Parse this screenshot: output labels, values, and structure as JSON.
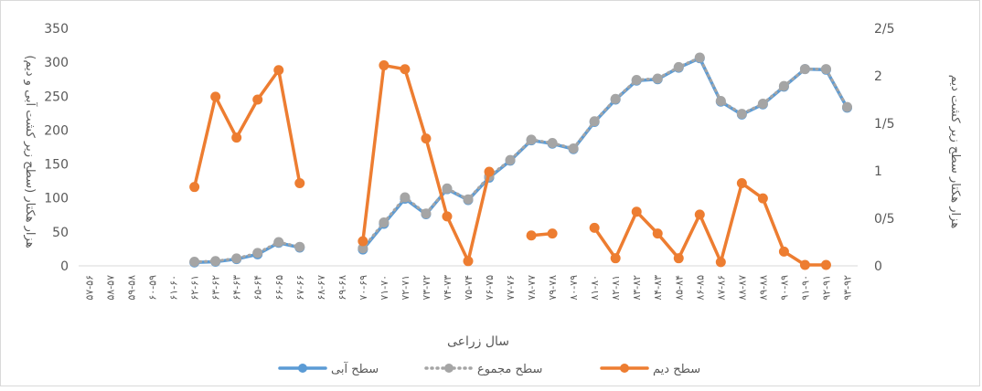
{
  "chart_data": {
    "type": "line",
    "xlabel": "سال زراعی",
    "ylabel_left": "هزار هکتار (سطح زیر کشت آبی و دیم)",
    "ylabel_right": "هزار هکتار سطح زیر کشت دیم",
    "y_left_lim": [
      0,
      350
    ],
    "y_left_ticks": [
      "0",
      "50",
      "100",
      "150",
      "200",
      "250",
      "300",
      "350"
    ],
    "y_right_lim": [
      0,
      2.5
    ],
    "y_right_ticks": [
      "0",
      "0/5",
      "1",
      "1/5",
      "2",
      "2/5"
    ],
    "grid": false,
    "legend": "bottom",
    "categories": [
      "۵۷-۵۶",
      "۵۸-۵۷",
      "۵۹-۵۸",
      "۶۰-۵۹",
      "۶۱-۶۰",
      "۶۲-۶۱",
      "۶۳-۶۲",
      "۶۴-۶۳",
      "۶۵-۶۴",
      "۶۶-۶۵",
      "۶۷-۶۶",
      "۶۸-۶۷",
      "۶۹-۶۸",
      "۷۰-۶۹",
      "۷۱-۷۰",
      "۷۲-۷۱",
      "۷۳-۷۲",
      "۷۴-۷۳",
      "۷۵-۷۴",
      "۷۶-۷۵",
      "۷۷-۷۶",
      "۷۸-۷۷",
      "۷۹-۷۸",
      "۸۰-۷۹",
      "۸۱-۸۰",
      "۸۲-۸۱",
      "۸۳-۸۲",
      "۸۴-۸۳",
      "۸۵-۸۴",
      "۸۶-۸۵",
      "۸۷-۸۶",
      "۸۸-۸۷",
      "۸۹-۸۸",
      "۹۰-۸۹",
      "۹۱-۹۰",
      "۹۲-۹۱",
      "۹۳-۹۲"
    ],
    "series": [
      {
        "name": "سطح آبی",
        "axis": "left",
        "color": "#5b9bd5",
        "values": [
          null,
          null,
          null,
          null,
          null,
          5,
          6,
          10,
          17,
          34,
          27,
          null,
          null,
          24,
          62,
          99,
          76,
          113,
          97,
          130,
          155,
          185,
          180,
          172,
          212,
          245,
          273,
          275,
          292,
          306,
          242,
          223,
          238,
          264,
          290,
          289,
          233
        ]
      },
      {
        "name": "سطح مجموع",
        "axis": "left",
        "color": "#a5a5a5",
        "values": [
          null,
          null,
          null,
          null,
          null,
          6,
          7,
          11,
          19,
          35,
          28,
          null,
          null,
          26,
          64,
          101,
          77,
          114,
          98,
          132,
          156,
          186,
          181,
          173,
          213,
          246,
          274,
          276,
          293,
          307,
          243,
          224,
          239,
          265,
          290,
          290,
          234
        ]
      },
      {
        "name": "سطح دیم",
        "axis": "right",
        "color": "#ed7d31",
        "values": [
          null,
          null,
          null,
          null,
          null,
          0.83,
          1.78,
          1.35,
          1.75,
          2.06,
          0.87,
          null,
          null,
          0.26,
          2.11,
          2.07,
          1.34,
          0.52,
          0.05,
          0.99,
          null,
          0.32,
          0.34,
          null,
          0.4,
          0.08,
          0.57,
          0.34,
          0.08,
          0.54,
          0.04,
          0.87,
          0.71,
          0.15,
          0.01,
          0.01,
          null
        ]
      }
    ]
  }
}
